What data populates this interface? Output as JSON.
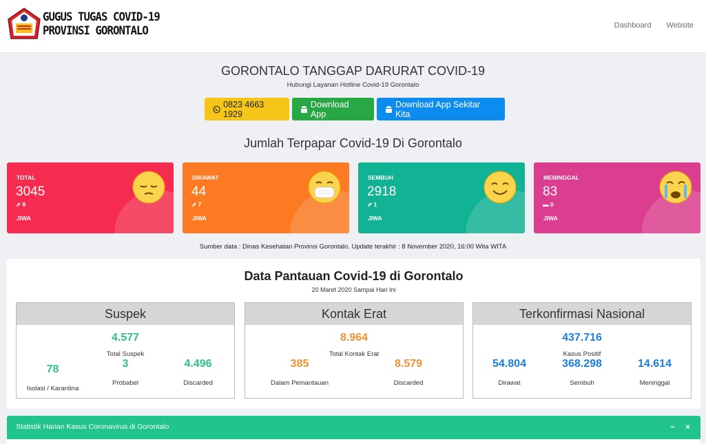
{
  "header": {
    "logo_line1": "GUGUS TUGAS COVID-19",
    "logo_line2": "PROVINSI GORONTALO",
    "nav": [
      "Dashboard",
      "Website"
    ]
  },
  "hero": {
    "title": "GORONTALO TANGGAP DARURAT COVID-19",
    "subtitle": "Hubungi Layanan Hotline Covid-19 Gorontalo",
    "buttons": {
      "hotline": "0823 4663 1929",
      "download": "Download App",
      "download2": "Download App Sekitar Kita"
    },
    "section_title": "Jumlah Terpapar Covid-19 Di Gorontalo"
  },
  "stats": [
    {
      "label": "TOTAL",
      "value": "3045",
      "change": "8",
      "unit": "JIWA",
      "color": "#f52b4f"
    },
    {
      "label": "DIRAWAT",
      "value": "44",
      "change": "7",
      "unit": "JIWA",
      "color": "#fb7a22"
    },
    {
      "label": "SEMBUH",
      "value": "2918",
      "change": "1",
      "unit": "JIWA",
      "color": "#12b294"
    },
    {
      "label": "MENINGGAL",
      "value": "83",
      "change": "0",
      "unit": "JIWA",
      "color": "#db3e8e"
    }
  ],
  "source_text": "Sumber data : Dinas Kesehatan Provinsi Gorontalo. Update terakhir : 8 November 2020, 16:00 Wita WITA",
  "pantauan": {
    "title": "Data Pantauan Covid-19 di Gorontalo",
    "subtitle": "20 Maret 2020 Sampai Hari Ini",
    "suspek": {
      "header": "Suspek",
      "total": "4.577",
      "total_label": "Total Suspek",
      "isolasi": "78",
      "isolasi_label": "Isolasi / Karantina",
      "probabel": "3",
      "probabel_label": "Probabel",
      "discarded": "4.496",
      "discarded_label": "Discarded"
    },
    "kontak": {
      "header": "Kontak Erat",
      "total": "8.964",
      "total_label": "Total Kontak Erat",
      "pemantauan": "385",
      "pemantauan_label": "Dalam Pemantauan",
      "discarded": "8.579",
      "discarded_label": "Discarded"
    },
    "nasional": {
      "header": "Terkonfirmasi Nasional",
      "total": "437.716",
      "total_label": "Kasus Positif",
      "dirawat": "54.804",
      "dirawat_label": "Dirawat",
      "sembuh": "368.298",
      "sembuh_label": "Sembuh",
      "meninggal": "14.614",
      "meninggal_label": "Meninggal"
    }
  },
  "statistik": {
    "title": "Statistik Harian Kasus Coronavirus di Gorontalo",
    "minimize": "−",
    "close": "×"
  },
  "colors": {
    "green": "#2fc08d",
    "orange": "#f09033",
    "blue": "#1b7fe0",
    "bar": "#22c48e"
  }
}
